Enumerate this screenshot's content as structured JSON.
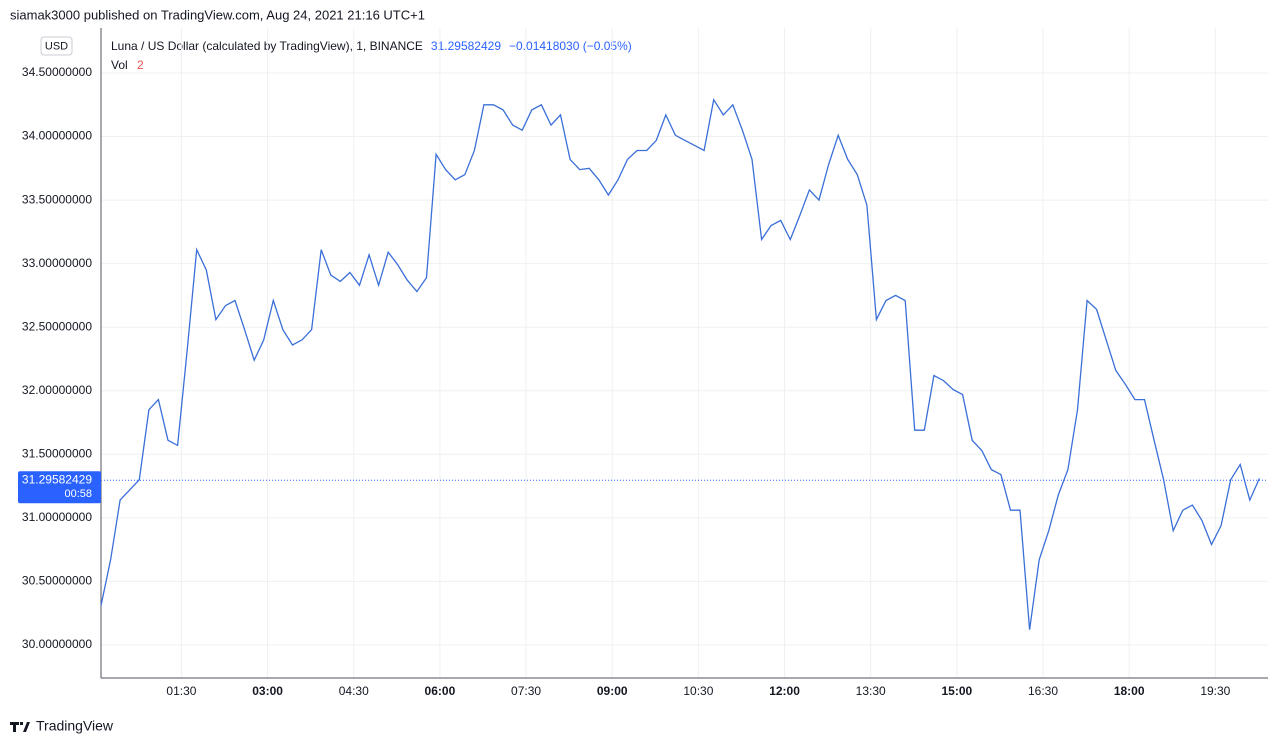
{
  "header": {
    "published": "siamak3000 published on TradingView.com, Aug 24, 2021 21:16 UTC+1"
  },
  "footer": {
    "brand": "TradingView"
  },
  "chart_data": {
    "type": "line",
    "title": "Luna / US Dollar (calculated by TradingView), 1, BINANCE",
    "currency": "USD",
    "last_price": 31.29582429,
    "change": "−0.01418030 (−0.05%)",
    "countdown": "00:58",
    "volume_label": "Vol",
    "volume_value": "2",
    "x": [
      6,
      16,
      26,
      36,
      46,
      56,
      66,
      76,
      86,
      96,
      106,
      116,
      126,
      136,
      146,
      156,
      166,
      176,
      186,
      196,
      206,
      216,
      226,
      236,
      246,
      256,
      266,
      276,
      286,
      296,
      306,
      316,
      326,
      336,
      346,
      356,
      366,
      376,
      386,
      396,
      406,
      416,
      426,
      436,
      446,
      456,
      466,
      476,
      486,
      496,
      506,
      516,
      526,
      536,
      546,
      556,
      566,
      576,
      586,
      596,
      606,
      616,
      626,
      636,
      646,
      656,
      666,
      676,
      686,
      696,
      706,
      716,
      726,
      736,
      746,
      756,
      766,
      776,
      786,
      796,
      806,
      816,
      826,
      836,
      846,
      856,
      866,
      876,
      886,
      896,
      906,
      916,
      926,
      936,
      946,
      956,
      966,
      976,
      986,
      996,
      1006,
      1016,
      1026,
      1036,
      1046,
      1056,
      1066,
      1076,
      1086,
      1096,
      1106,
      1116,
      1126,
      1136,
      1146,
      1156,
      1166,
      1176,
      1186,
      1196,
      1206,
      1216
    ],
    "series": [
      {
        "name": "Luna / US Dollar",
        "color": "#3a6fd8",
        "values": [
          30.31,
          30.67,
          31.14,
          31.22,
          31.3,
          31.85,
          31.93,
          31.61,
          31.57,
          32.32,
          33.11,
          32.95,
          32.56,
          32.67,
          32.71,
          32.48,
          32.24,
          32.4,
          32.71,
          32.48,
          32.36,
          32.4,
          32.48,
          33.11,
          32.91,
          32.86,
          32.93,
          32.83,
          33.07,
          32.83,
          33.09,
          32.99,
          32.87,
          32.78,
          32.89,
          33.86,
          33.74,
          33.66,
          33.7,
          33.89,
          34.25,
          34.25,
          34.21,
          34.09,
          34.05,
          34.21,
          34.25,
          34.09,
          34.17,
          33.82,
          33.74,
          33.75,
          33.66,
          33.54,
          33.66,
          33.82,
          33.89,
          33.89,
          33.97,
          34.17,
          34.01,
          33.97,
          33.93,
          33.89,
          34.29,
          34.17,
          34.25,
          34.05,
          33.82,
          33.19,
          33.3,
          33.34,
          33.19,
          33.38,
          33.58,
          33.5,
          33.78,
          34.01,
          33.82,
          33.7,
          33.46,
          32.56,
          32.71,
          32.75,
          32.71,
          31.69,
          31.69,
          32.12,
          32.08,
          32.01,
          31.97,
          31.61,
          31.53,
          31.38,
          31.34,
          31.06,
          31.06,
          30.12,
          30.67,
          30.9,
          31.18,
          31.38,
          31.85,
          32.71,
          32.64,
          32.4,
          32.16,
          32.05,
          31.93,
          31.93,
          31.61,
          31.3,
          30.9,
          31.06,
          31.1,
          30.98,
          30.79,
          30.94,
          31.3,
          31.42,
          31.14,
          31.31
        ]
      }
    ],
    "xlim": [
      6,
      1225
    ],
    "xticks": [
      {
        "value": 90,
        "label": "01:30"
      },
      {
        "value": 180,
        "label": "03:00"
      },
      {
        "value": 270,
        "label": "04:30"
      },
      {
        "value": 360,
        "label": "06:00"
      },
      {
        "value": 450,
        "label": "07:30"
      },
      {
        "value": 540,
        "label": "09:00"
      },
      {
        "value": 630,
        "label": "10:30"
      },
      {
        "value": 720,
        "label": "12:00"
      },
      {
        "value": 810,
        "label": "13:30"
      },
      {
        "value": 900,
        "label": "15:00"
      },
      {
        "value": 990,
        "label": "16:30"
      },
      {
        "value": 1080,
        "label": "18:00"
      },
      {
        "value": 1170,
        "label": "19:30"
      }
    ],
    "ylim": [
      29.74,
      34.854
    ],
    "yticks": [
      {
        "value": 30,
        "label": "30.00000000"
      },
      {
        "value": 30.5,
        "label": "30.50000000"
      },
      {
        "value": 31,
        "label": "31.00000000"
      },
      {
        "value": 31.5,
        "label": "31.50000000"
      },
      {
        "value": 32,
        "label": "32.00000000"
      },
      {
        "value": 32.5,
        "label": "32.50000000"
      },
      {
        "value": 33,
        "label": "33.00000000"
      },
      {
        "value": 33.5,
        "label": "33.50000000"
      },
      {
        "value": 34,
        "label": "34.00000000"
      },
      {
        "value": 34.5,
        "label": "34.50000000"
      }
    ],
    "grid": true
  }
}
